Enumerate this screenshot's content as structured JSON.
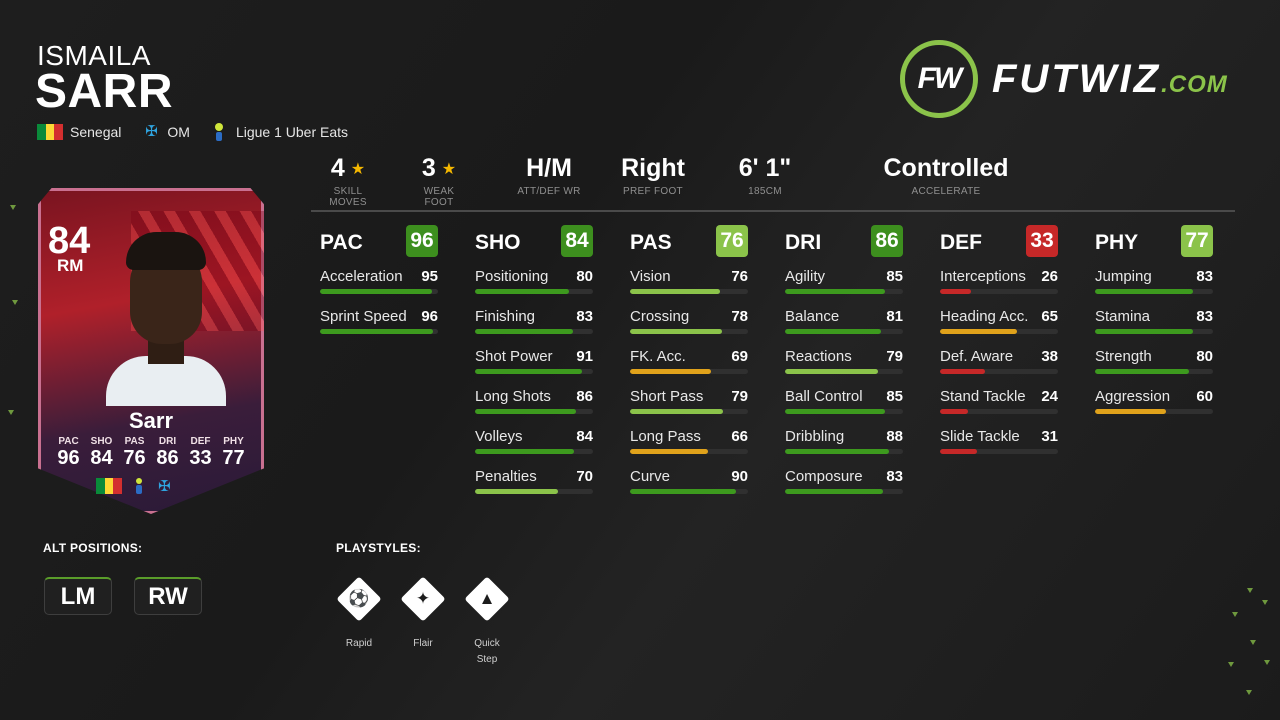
{
  "player": {
    "first_name": "ISMAILA",
    "last_name": "SARR",
    "nation": "Senegal",
    "club": "OM",
    "league": "Ligue 1 Uber Eats"
  },
  "logo": {
    "mark": "FW",
    "brand": "FUTWIZ",
    "suffix": ".COM",
    "accent": "#8bc34a"
  },
  "info": [
    {
      "value": "4",
      "label": "SKILL MOVES",
      "star": true
    },
    {
      "value": "3",
      "label": "WEAK FOOT",
      "star": true
    },
    {
      "value": "H/M",
      "label": "ATT/DEF WR",
      "star": false
    },
    {
      "value": "Right",
      "label": "PREF FOOT",
      "star": false
    },
    {
      "value": "6' 1\"",
      "label": "185CM",
      "star": false
    },
    {
      "value": "Controlled",
      "label": "ACCELERATE",
      "star": false
    }
  ],
  "card": {
    "rating": "84",
    "position": "RM",
    "name": "Sarr",
    "stats": [
      {
        "label": "PAC",
        "value": "96"
      },
      {
        "label": "SHO",
        "value": "84"
      },
      {
        "label": "PAS",
        "value": "76"
      },
      {
        "label": "DRI",
        "value": "86"
      },
      {
        "label": "DEF",
        "value": "33"
      },
      {
        "label": "PHY",
        "value": "77"
      }
    ]
  },
  "categories": [
    {
      "name": "PAC",
      "value": "96",
      "badge_color": "#3d8f1e",
      "stats": [
        {
          "name": "Acceleration",
          "value": "95"
        },
        {
          "name": "Sprint Speed",
          "value": "96"
        }
      ]
    },
    {
      "name": "SHO",
      "value": "84",
      "badge_color": "#3d8f1e",
      "stats": [
        {
          "name": "Positioning",
          "value": "80"
        },
        {
          "name": "Finishing",
          "value": "83"
        },
        {
          "name": "Shot Power",
          "value": "91"
        },
        {
          "name": "Long Shots",
          "value": "86"
        },
        {
          "name": "Volleys",
          "value": "84"
        },
        {
          "name": "Penalties",
          "value": "70"
        }
      ]
    },
    {
      "name": "PAS",
      "value": "76",
      "badge_color": "#8bc34a",
      "stats": [
        {
          "name": "Vision",
          "value": "76"
        },
        {
          "name": "Crossing",
          "value": "78"
        },
        {
          "name": "FK. Acc.",
          "value": "69"
        },
        {
          "name": "Short Pass",
          "value": "79"
        },
        {
          "name": "Long Pass",
          "value": "66"
        },
        {
          "name": "Curve",
          "value": "90"
        }
      ]
    },
    {
      "name": "DRI",
      "value": "86",
      "badge_color": "#3d8f1e",
      "stats": [
        {
          "name": "Agility",
          "value": "85"
        },
        {
          "name": "Balance",
          "value": "81"
        },
        {
          "name": "Reactions",
          "value": "79"
        },
        {
          "name": "Ball Control",
          "value": "85"
        },
        {
          "name": "Dribbling",
          "value": "88"
        },
        {
          "name": "Composure",
          "value": "83"
        }
      ]
    },
    {
      "name": "DEF",
      "value": "33",
      "badge_color": "#c62828",
      "stats": [
        {
          "name": "Interceptions",
          "value": "26"
        },
        {
          "name": "Heading Acc.",
          "value": "65"
        },
        {
          "name": "Def. Aware",
          "value": "38"
        },
        {
          "name": "Stand Tackle",
          "value": "24"
        },
        {
          "name": "Slide Tackle",
          "value": "31"
        }
      ]
    },
    {
      "name": "PHY",
      "value": "77",
      "badge_color": "#8bc34a",
      "stats": [
        {
          "name": "Jumping",
          "value": "83"
        },
        {
          "name": "Stamina",
          "value": "83"
        },
        {
          "name": "Strength",
          "value": "80"
        },
        {
          "name": "Aggression",
          "value": "60"
        }
      ]
    }
  ],
  "alt_positions": {
    "label": "ALT POSITIONS:",
    "items": [
      "LM",
      "RW"
    ]
  },
  "playstyles": {
    "label": "PLAYSTYLES:",
    "items": [
      "Rapid",
      "Flair",
      "Quick\nStep"
    ]
  },
  "colors": {
    "high": "#3d9a1e",
    "good": "#8bc34a",
    "mid": "#e0a21b",
    "low": "#c62828"
  }
}
